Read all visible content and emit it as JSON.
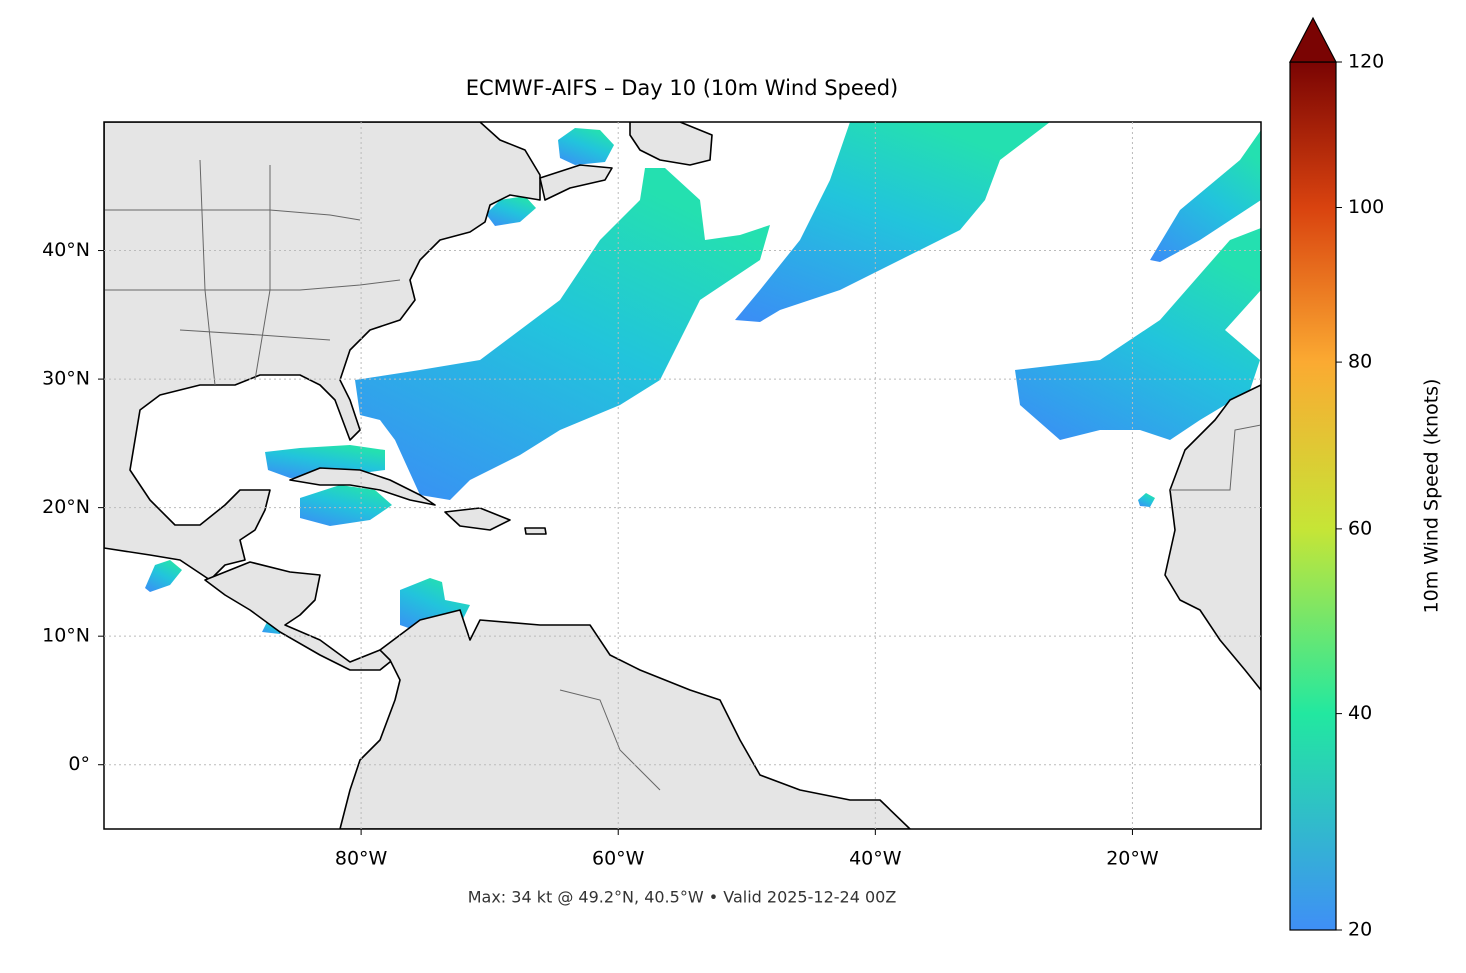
{
  "chart_data": {
    "type": "map",
    "title": "ECMWF-AIFS – Day 10 (10m Wind Speed)",
    "footer": "Max: 34 kt @ 49.2°N, 40.5°W • Valid 2025-12-24 00Z",
    "xlim": [
      -100,
      -10
    ],
    "ylim": [
      -5,
      50
    ],
    "xticks": [
      {
        "value": -80,
        "label": "80°W"
      },
      {
        "value": -60,
        "label": "60°W"
      },
      {
        "value": -40,
        "label": "40°W"
      },
      {
        "value": -20,
        "label": "20°W"
      }
    ],
    "yticks": [
      {
        "value": 0,
        "label": "0°"
      },
      {
        "value": 10,
        "label": "10°N"
      },
      {
        "value": 20,
        "label": "20°N"
      },
      {
        "value": 30,
        "label": "30°N"
      },
      {
        "value": 40,
        "label": "40°N"
      }
    ],
    "grid": true,
    "colorbar": {
      "label": "10m Wind Speed (knots)",
      "lim": [
        20,
        120
      ],
      "ticks": [
        20,
        40,
        60,
        80,
        100,
        120
      ],
      "gamma": 0.7,
      "colors": [
        "#3f8ff6",
        "#22e8a0",
        "#c6e536",
        "#fbaa32",
        "#d9430f",
        "#7a0403"
      ],
      "extend": "max"
    }
  }
}
